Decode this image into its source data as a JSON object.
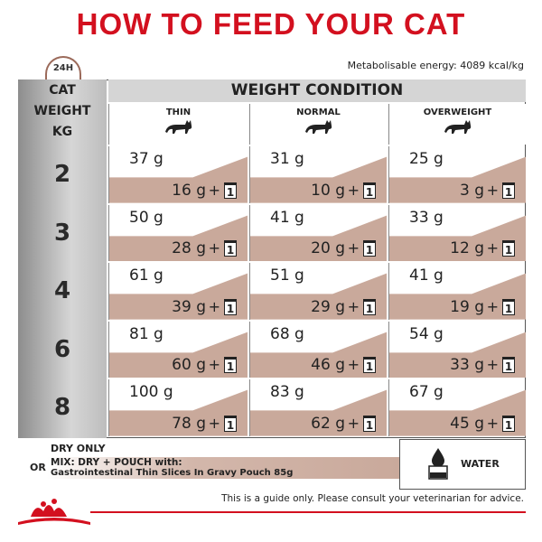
{
  "title": "HOW TO FEED YOUR CAT",
  "badge": "24H",
  "energy": "Metabolisable energy: 4089 kcal/kg",
  "table": {
    "corner": [
      "CAT",
      "WEIGHT",
      "KG"
    ],
    "group_header": "WEIGHT CONDITION",
    "columns": [
      "THIN",
      "NORMAL",
      "OVERWEIGHT"
    ],
    "plus": "+",
    "pouch": "1",
    "rows": [
      {
        "weight": "2",
        "cells": [
          {
            "dry": "37 g",
            "mix": "16 g"
          },
          {
            "dry": "31 g",
            "mix": "10 g"
          },
          {
            "dry": "25 g",
            "mix": "3 g"
          }
        ]
      },
      {
        "weight": "3",
        "cells": [
          {
            "dry": "50 g",
            "mix": "28 g"
          },
          {
            "dry": "41 g",
            "mix": "20 g"
          },
          {
            "dry": "33 g",
            "mix": "12 g"
          }
        ]
      },
      {
        "weight": "4",
        "cells": [
          {
            "dry": "61 g",
            "mix": "39 g"
          },
          {
            "dry": "51 g",
            "mix": "29 g"
          },
          {
            "dry": "41 g",
            "mix": "19 g"
          }
        ]
      },
      {
        "weight": "6",
        "cells": [
          {
            "dry": "81 g",
            "mix": "60 g"
          },
          {
            "dry": "68 g",
            "mix": "46 g"
          },
          {
            "dry": "54 g",
            "mix": "33 g"
          }
        ]
      },
      {
        "weight": "8",
        "cells": [
          {
            "dry": "100 g",
            "mix": "78 g"
          },
          {
            "dry": "83 g",
            "mix": "62 g"
          },
          {
            "dry": "67 g",
            "mix": "45 g"
          }
        ]
      }
    ]
  },
  "legend": {
    "dry_only": "DRY ONLY",
    "or": "OR",
    "mix": "MIX: DRY + POUCH with:",
    "product": "Gastrointestinal Thin Slices In Gravy Pouch 85g",
    "water": "WATER"
  },
  "footer": "This is a guide only. Please consult your veterinarian for advice."
}
